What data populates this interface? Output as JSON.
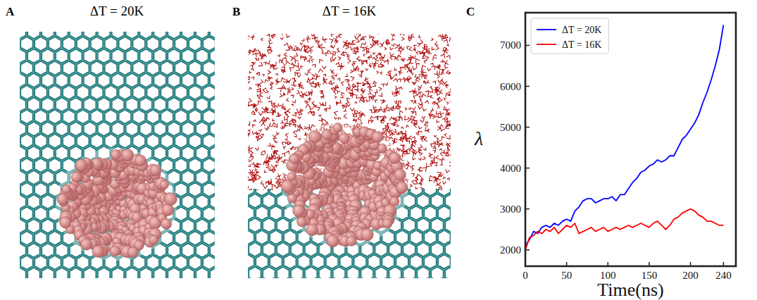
{
  "panels": [
    {
      "letter": "A",
      "title": "ΔT = 20K"
    },
    {
      "letter": "B",
      "title": "ΔT = 16K"
    }
  ],
  "chart_data": {
    "panel_label": "C",
    "type": "line",
    "x_label": "Time(ns)",
    "y_label": "λ",
    "x": [
      0,
      5,
      10,
      15,
      20,
      25,
      30,
      35,
      40,
      45,
      50,
      55,
      60,
      65,
      70,
      75,
      80,
      85,
      90,
      95,
      100,
      105,
      110,
      115,
      120,
      125,
      130,
      135,
      140,
      145,
      150,
      155,
      160,
      165,
      170,
      175,
      180,
      185,
      190,
      195,
      200,
      205,
      210,
      215,
      220,
      225,
      230,
      235,
      240
    ],
    "series": [
      {
        "name": "ΔT = 20K",
        "color": "#0000ff",
        "values": [
          2100,
          2250,
          2450,
          2400,
          2550,
          2600,
          2550,
          2650,
          2600,
          2700,
          2750,
          2700,
          2950,
          3050,
          3200,
          3250,
          3250,
          3150,
          3200,
          3250,
          3250,
          3300,
          3200,
          3350,
          3350,
          3500,
          3650,
          3750,
          3900,
          3950,
          4050,
          4100,
          4200,
          4150,
          4200,
          4300,
          4300,
          4500,
          4700,
          4800,
          4950,
          5100,
          5300,
          5600,
          5850,
          6150,
          6500,
          6900,
          7500
        ]
      },
      {
        "name": "ΔT = 16K",
        "color": "#ff0000",
        "values": [
          2000,
          2300,
          2350,
          2450,
          2400,
          2500,
          2450,
          2550,
          2400,
          2500,
          2600,
          2550,
          2650,
          2400,
          2450,
          2500,
          2550,
          2450,
          2500,
          2550,
          2450,
          2500,
          2550,
          2500,
          2550,
          2600,
          2550,
          2600,
          2650,
          2600,
          2550,
          2650,
          2700,
          2600,
          2500,
          2600,
          2750,
          2800,
          2900,
          2950,
          3000,
          2950,
          2850,
          2800,
          2700,
          2700,
          2650,
          2600,
          2600
        ]
      }
    ],
    "xlim": [
      0,
      255
    ],
    "xticks": [
      0,
      50,
      100,
      150,
      200,
      240
    ],
    "ylim": [
      1600,
      7800
    ],
    "yticks": [
      2000,
      3000,
      4000,
      5000,
      6000,
      7000
    ],
    "legend": "upper left",
    "grid": false
  }
}
